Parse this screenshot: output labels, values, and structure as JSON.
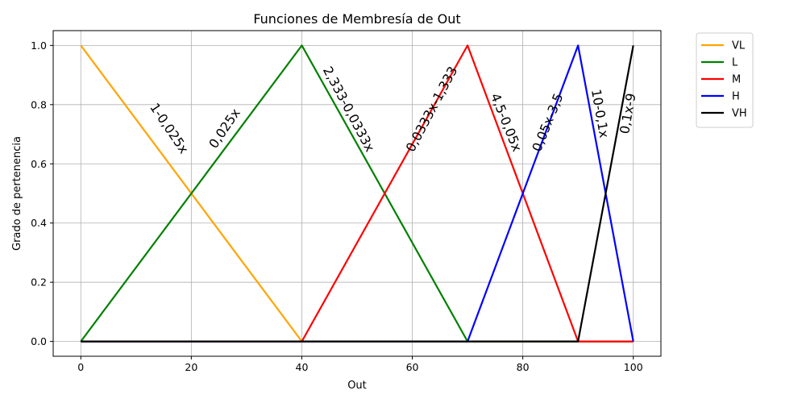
{
  "chart_data": {
    "type": "line",
    "title": "Funciones de Membresía de Out",
    "xlabel": "Out",
    "ylabel": "Grado de pertenencia",
    "xlim": [
      -5,
      105
    ],
    "ylim": [
      -0.05,
      1.05
    ],
    "xticks": [
      0,
      20,
      40,
      60,
      80,
      100
    ],
    "xtick_labels": [
      "0",
      "20",
      "40",
      "60",
      "80",
      "100"
    ],
    "yticks": [
      0.0,
      0.2,
      0.4,
      0.6,
      0.8,
      1.0
    ],
    "ytick_labels": [
      "0.0",
      "0.2",
      "0.4",
      "0.6",
      "0.8",
      "1.0"
    ],
    "grid": true,
    "legend_position": "outside-top-right",
    "series": [
      {
        "name": "VL",
        "color": "#ffa500",
        "x": [
          0,
          40,
          100
        ],
        "y": [
          1,
          0,
          0
        ]
      },
      {
        "name": "L",
        "color": "#008000",
        "x": [
          0,
          40,
          70,
          100
        ],
        "y": [
          0,
          1,
          0,
          0
        ]
      },
      {
        "name": "M",
        "color": "#ff0000",
        "x": [
          0,
          40,
          70,
          90,
          100
        ],
        "y": [
          0,
          0,
          1,
          0,
          0
        ]
      },
      {
        "name": "H",
        "color": "#0000ff",
        "x": [
          0,
          70,
          90,
          100
        ],
        "y": [
          0,
          0,
          1,
          0
        ]
      },
      {
        "name": "VH",
        "color": "#000000",
        "x": [
          0,
          90,
          100
        ],
        "y": [
          0,
          0,
          1
        ]
      }
    ],
    "annotations": [
      {
        "text": "1-0,025x",
        "x": 16,
        "y": 0.72,
        "angle": 56
      },
      {
        "text": "0,025x",
        "x": 26,
        "y": 0.72,
        "angle": -56
      },
      {
        "text": "2,333-0,0333x",
        "x": 48.5,
        "y": 0.785,
        "angle": 62
      },
      {
        "text": "0,0333x-1,333",
        "x": 63.5,
        "y": 0.785,
        "angle": -62
      },
      {
        "text": "4,5-0,05x",
        "x": 77,
        "y": 0.74,
        "angle": 68
      },
      {
        "text": "0,05x-3,5",
        "x": 84.5,
        "y": 0.74,
        "angle": -68
      },
      {
        "text": "10-0,1x",
        "x": 94,
        "y": 0.77,
        "angle": 80
      },
      {
        "text": "0,1x-9",
        "x": 99,
        "y": 0.77,
        "angle": -80
      }
    ]
  }
}
